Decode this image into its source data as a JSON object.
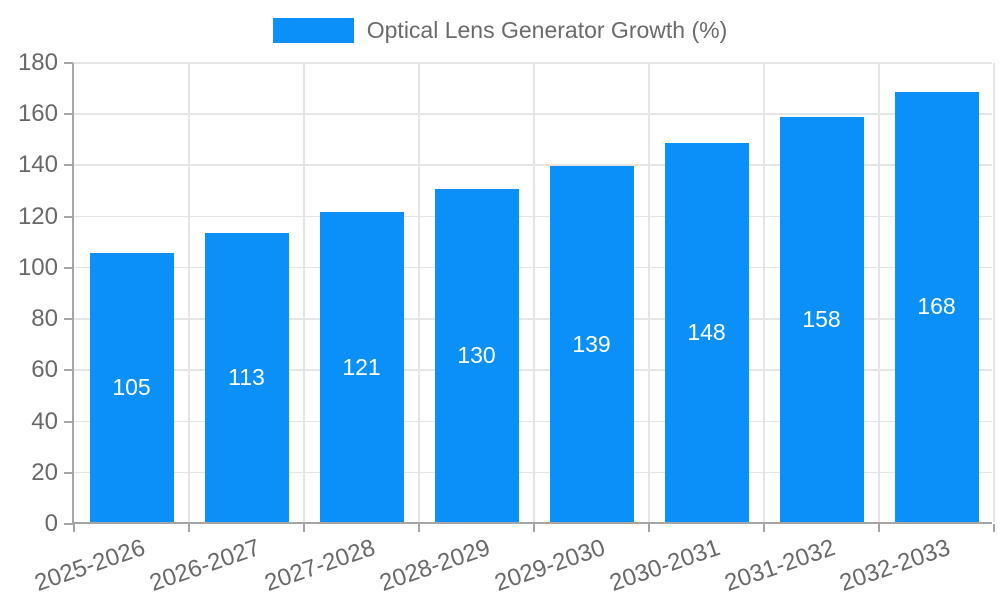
{
  "legend": {
    "label": "Optical Lens Generator Growth (%)"
  },
  "colors": {
    "bar": "#0a90f8",
    "grid": "#e5e5e5",
    "axis": "#a5a5a5",
    "tick_text": "#696969",
    "legend_text": "#6b6b6b",
    "bar_label_text": "#ffffff",
    "background": "#ffffff"
  },
  "chart_data": {
    "type": "bar",
    "title": "",
    "xlabel": "",
    "ylabel": "",
    "categories": [
      "2025-2026",
      "2026-2027",
      "2027-2028",
      "2028-2029",
      "2029-2030",
      "2030-2031",
      "2031-2032",
      "2032-2033"
    ],
    "series": [
      {
        "name": "Optical Lens Generator Growth (%)",
        "values": [
          105,
          113,
          121,
          130,
          139,
          148,
          158,
          168
        ]
      }
    ],
    "bar_labels": [
      "105",
      "113",
      "121",
      "130",
      "139",
      "148",
      "158",
      "168"
    ],
    "ylim": [
      0,
      180
    ],
    "yticks": [
      0,
      20,
      40,
      60,
      80,
      100,
      120,
      140,
      160,
      180
    ],
    "grid": true,
    "legend_position": "top-center",
    "bar_label_position": "inside-center",
    "xtick_rotation_deg": -19
  }
}
